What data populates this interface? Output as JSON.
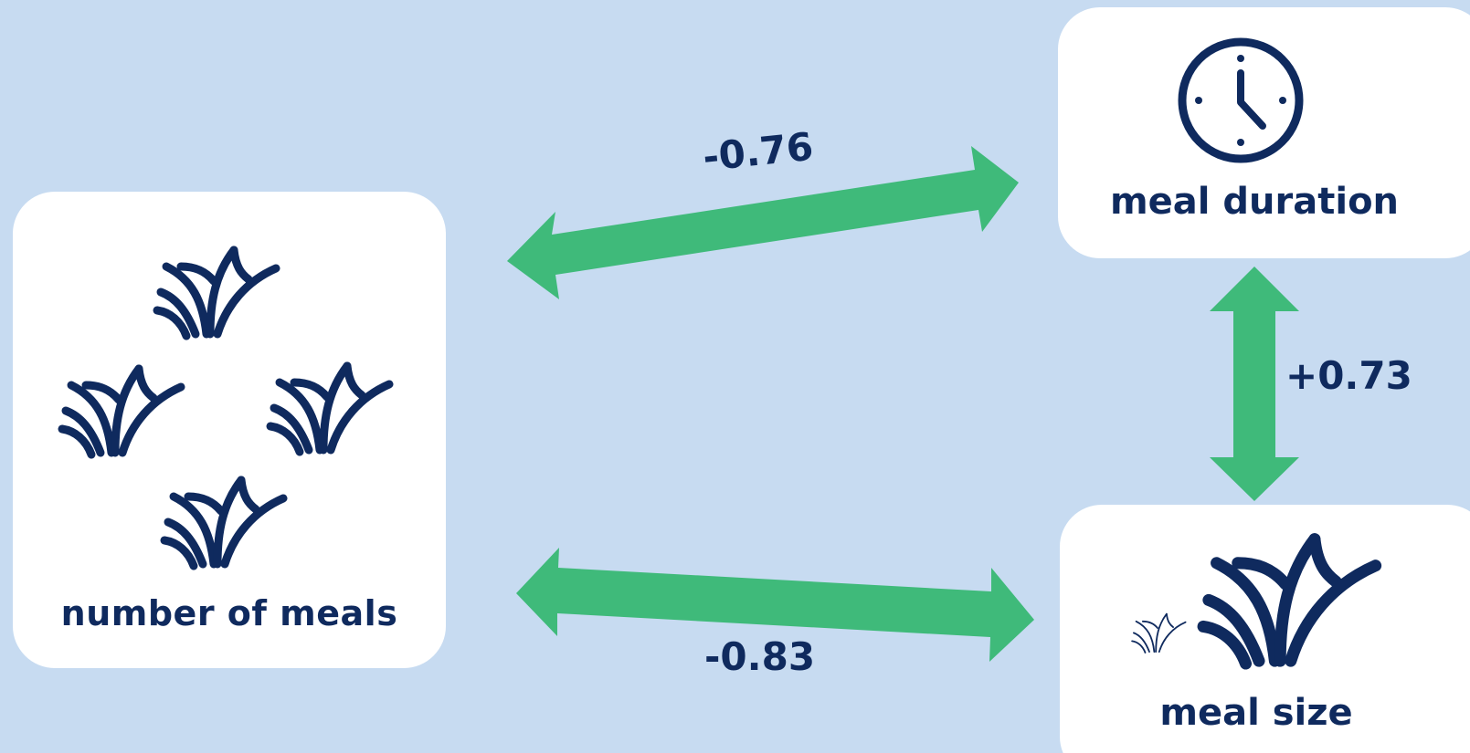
{
  "nodes": {
    "meals": {
      "label": "number of meals",
      "icon": "grass-tufts-icon"
    },
    "duration": {
      "label": "meal duration",
      "icon": "clock-icon"
    },
    "size": {
      "label": "meal size",
      "icon": "grass-small-large-icon"
    }
  },
  "edges": [
    {
      "from": "number of meals",
      "to": "meal duration",
      "correlation": "-0.76"
    },
    {
      "from": "number of meals",
      "to": "meal size",
      "correlation": "-0.83"
    },
    {
      "from": "meal duration",
      "to": "meal size",
      "correlation": "+0.73"
    }
  ],
  "colors": {
    "background": "#c7dbf1",
    "arrow": "#3fba7a",
    "text": "#0f2a5e",
    "icon": "#0f2a5e",
    "card": "#ffffff"
  }
}
